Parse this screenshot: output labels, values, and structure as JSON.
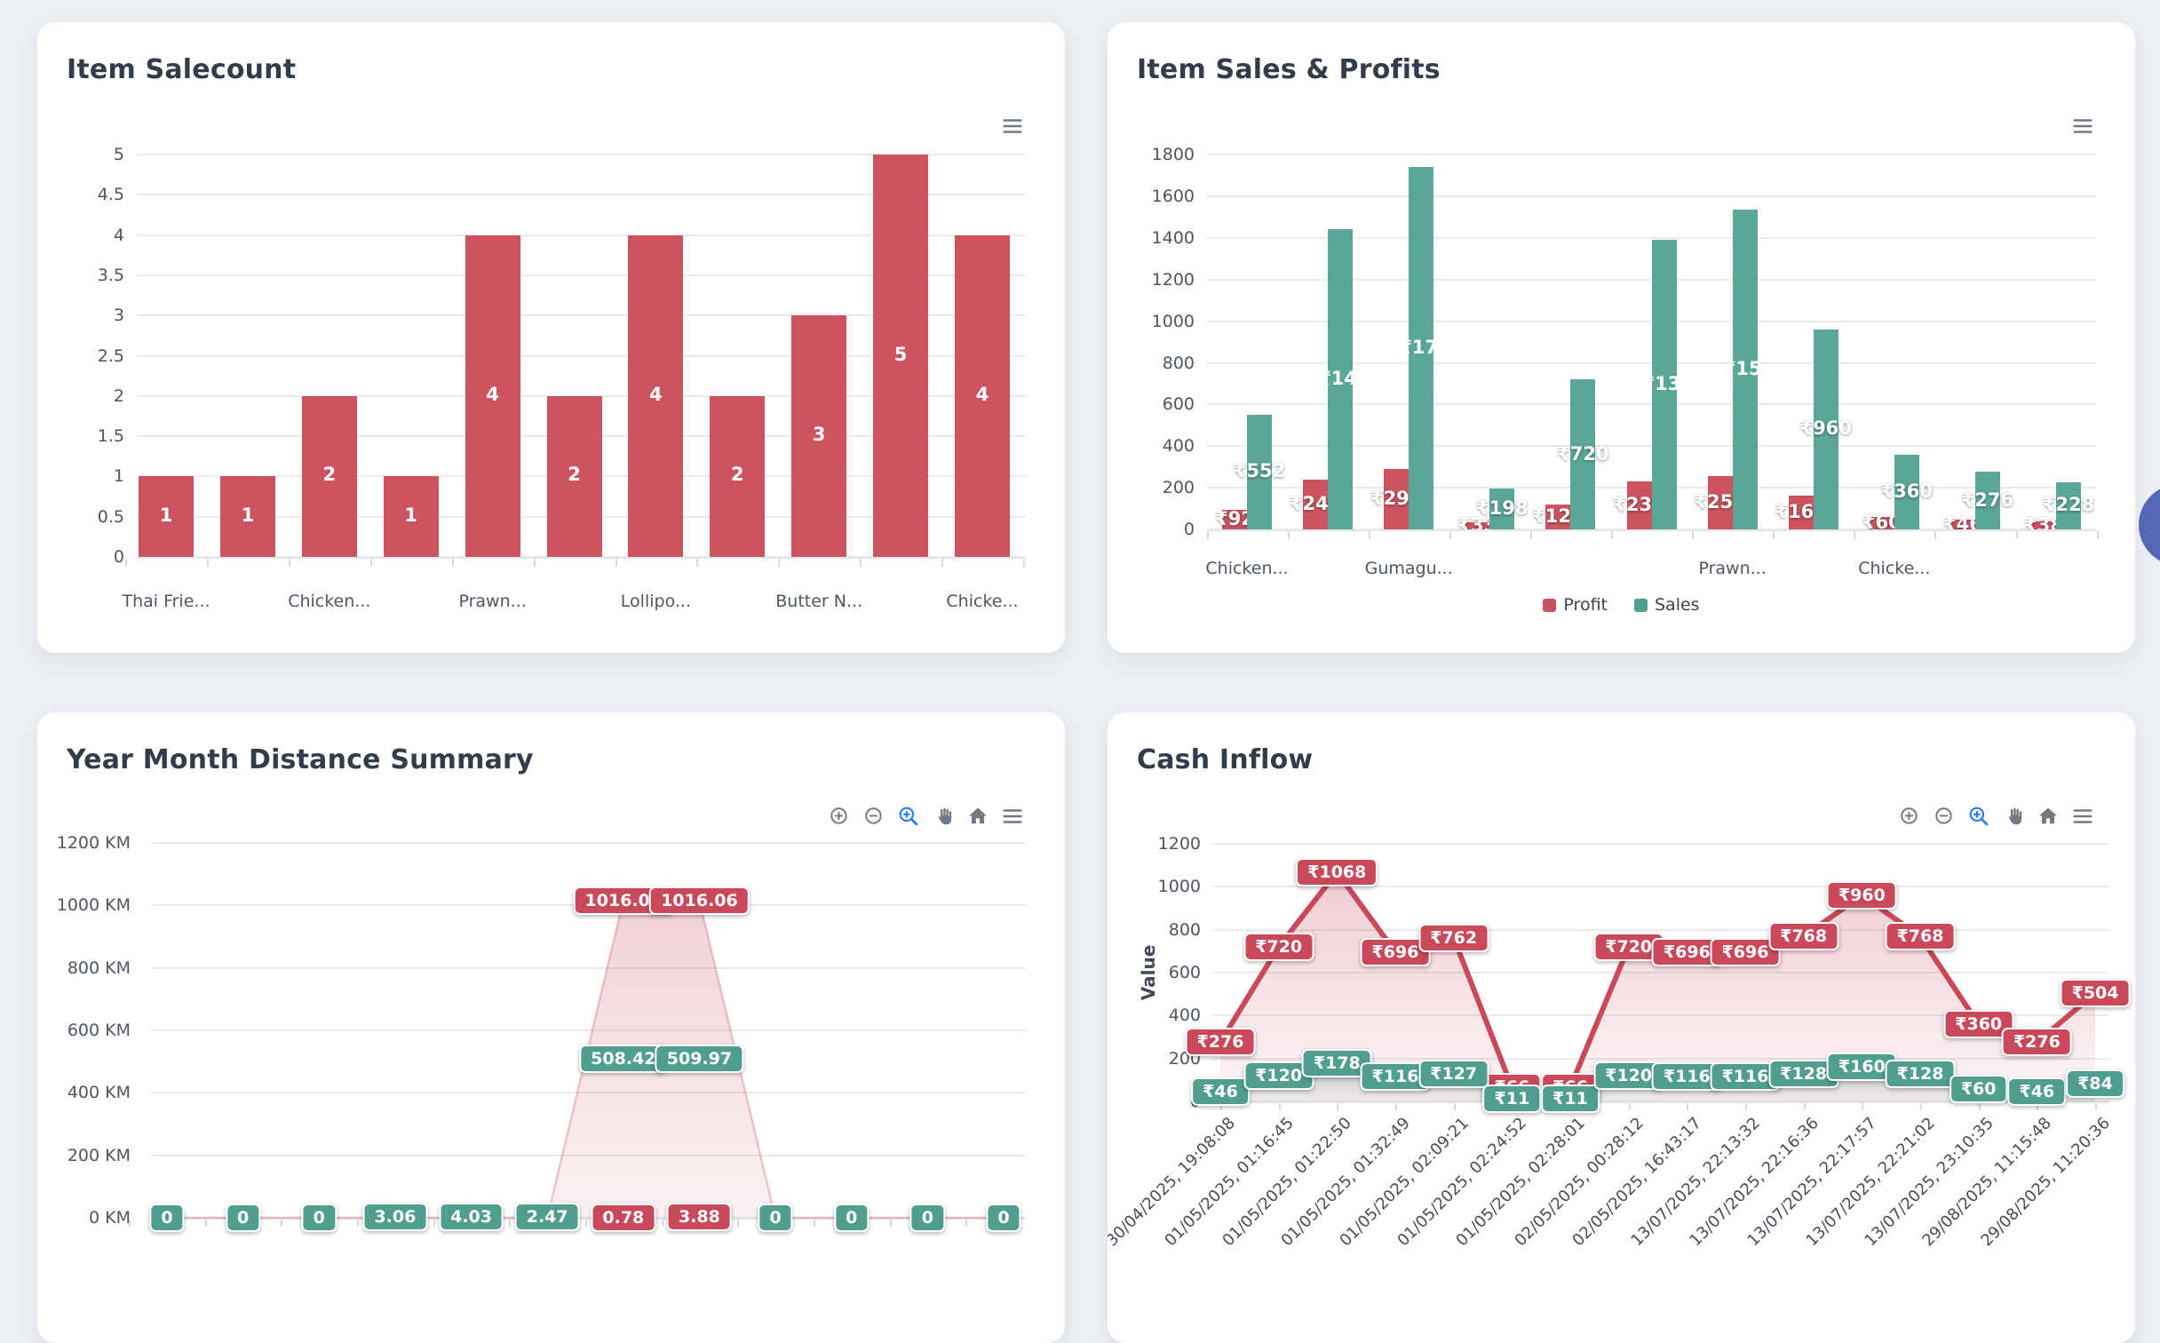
{
  "page": {
    "background_color": "#eceff4",
    "card_color": "#ffffff",
    "title_color": "#333c4a",
    "toolbar_icon_color": "#6e7a86",
    "selection_zoom_active_color": "#2b7cf0",
    "fab_color": "#5367b5",
    "label_colors": {
      "red": "#c9495a",
      "green": "#4f9e90"
    }
  },
  "chart_data": [
    {
      "id": "item-salecount",
      "type": "bar",
      "title": "Item Salecount",
      "categories": [
        "Thai Frie...",
        "",
        "Chicken...",
        "",
        "Prawn...",
        "",
        "Lollipo...",
        "",
        "Butter N...",
        "",
        "Chicke..."
      ],
      "values": [
        1,
        1,
        2,
        1,
        4,
        2,
        4,
        2,
        3,
        5,
        4
      ],
      "bar_color": "#cb5460",
      "ylim": [
        0,
        5
      ],
      "y_ticks": [
        "5",
        "4.5",
        "4",
        "3.5",
        "3",
        "2.5",
        "2",
        "1.5",
        "1",
        "0.5",
        "0"
      ],
      "grid": true,
      "legend_position": "none",
      "toolbar": "menu"
    },
    {
      "id": "item-sales-profits",
      "type": "grouped-bar",
      "title": "Item Sales & Profits",
      "categories": [
        "Chicken...",
        "",
        "Gumagu...",
        "",
        "",
        "",
        "Prawn...",
        "",
        "Chicke...",
        "",
        ""
      ],
      "series": [
        {
          "name": "Profit",
          "color": "#cb5460",
          "values": [
            92,
            240,
            290,
            33,
            120,
            232,
            256,
            160,
            60,
            46,
            38
          ],
          "labels": [
            "₹92",
            "₹240",
            "₹290",
            "₹33",
            "₹120",
            "₹232",
            "₹256",
            "₹160",
            "₹60",
            "₹46",
            "₹38"
          ]
        },
        {
          "name": "Sales",
          "color": "#5aa79a",
          "values": [
            552,
            1440,
            1740,
            198,
            720,
            1392,
            1536,
            960,
            360,
            276,
            228
          ],
          "labels": [
            "₹552",
            "₹1440",
            "₹1740",
            "₹198",
            "₹720",
            "₹1392",
            "₹1536",
            "₹960",
            "₹360",
            "₹276",
            "₹228"
          ]
        }
      ],
      "ylim": [
        0,
        1800
      ],
      "y_ticks": [
        "1800",
        "1600",
        "1400",
        "1200",
        "1000",
        "800",
        "600",
        "400",
        "200",
        "0"
      ],
      "grid": true,
      "legend_position": "bottom",
      "legend": [
        "Profit",
        "Sales"
      ],
      "toolbar": "menu"
    },
    {
      "id": "year-month-distance-summary",
      "type": "area",
      "title": "Year Month Distance Summary",
      "points": 12,
      "area_values": [
        0,
        0,
        0,
        0,
        0,
        0,
        1016.06,
        1016.06,
        0,
        0,
        0,
        0
      ],
      "area_color": "#c9505e",
      "ylim": [
        0,
        1200
      ],
      "y_ticks": [
        "1200 KM",
        "1000 KM",
        "800 KM",
        "600 KM",
        "400 KM",
        "200 KM",
        "0 KM"
      ],
      "point_labels": [
        {
          "point": 6,
          "text": "1016.06",
          "value": 1016.06,
          "color": "red"
        },
        {
          "point": 7,
          "text": "1016.06",
          "value": 1016.06,
          "color": "red"
        },
        {
          "point": 6,
          "text": "508.42",
          "value": 508.42,
          "color": "green"
        },
        {
          "point": 7,
          "text": "509.97",
          "value": 509.97,
          "color": "green"
        },
        {
          "point": 0,
          "text": "0",
          "value": 0,
          "color": "green"
        },
        {
          "point": 1,
          "text": "0",
          "value": 0,
          "color": "green"
        },
        {
          "point": 2,
          "text": "0",
          "value": 0,
          "color": "green"
        },
        {
          "point": 3,
          "text": "3.06",
          "value": 3.06,
          "color": "green"
        },
        {
          "point": 4,
          "text": "4.03",
          "value": 4.03,
          "color": "green"
        },
        {
          "point": 5,
          "text": "2.47",
          "value": 2.47,
          "color": "green"
        },
        {
          "point": 6,
          "text": "0.78",
          "value": 0.78,
          "color": "red"
        },
        {
          "point": 7,
          "text": "3.88",
          "value": 3.88,
          "color": "red"
        },
        {
          "point": 8,
          "text": "0",
          "value": 0,
          "color": "green"
        },
        {
          "point": 9,
          "text": "0",
          "value": 0,
          "color": "green"
        },
        {
          "point": 10,
          "text": "0",
          "value": 0,
          "color": "green"
        },
        {
          "point": 11,
          "text": "0",
          "value": 0,
          "color": "green"
        }
      ],
      "grid": true,
      "toolbar": "zoom"
    },
    {
      "id": "cash-inflow",
      "type": "line",
      "title": "Cash Inflow",
      "ylabel": "Value",
      "ylim": [
        0,
        1200
      ],
      "y_ticks": [
        "1200",
        "1000",
        "800",
        "600",
        "400",
        "200",
        "0"
      ],
      "x": [
        "30/04/2025, 19:08:08",
        "01/05/2025, 01:16:45",
        "01/05/2025, 01:22:50",
        "01/05/2025, 01:32:49",
        "01/05/2025, 02:09:21",
        "01/05/2025, 02:24:52",
        "01/05/2025, 02:28:01",
        "02/05/2025, 00:28:12",
        "02/05/2025, 16:43:17",
        "13/07/2025, 22:13:32",
        "13/07/2025, 22:16:36",
        "13/07/2025, 22:17:57",
        "13/07/2025, 22:21:02",
        "13/07/2025, 23:10:35",
        "29/08/2025, 11:15:48",
        "29/08/2025, 11:20:36"
      ],
      "series": [
        {
          "name": "red",
          "color": "#c9495a",
          "values": [
            276,
            720,
            1068,
            696,
            762,
            66,
            66,
            720,
            696,
            696,
            768,
            960,
            768,
            360,
            276,
            504
          ],
          "labels": [
            "₹276",
            "₹720",
            "₹1068",
            "₹696",
            "₹762",
            "₹66",
            "₹66",
            "₹720",
            "₹696",
            "₹696",
            "₹768",
            "₹960",
            "₹768",
            "₹360",
            "₹276",
            "₹504"
          ]
        },
        {
          "name": "green",
          "color": "#4f9e90",
          "values": [
            46,
            120,
            178,
            116,
            127,
            11,
            11,
            120,
            116,
            116,
            128,
            160,
            128,
            60,
            46,
            84
          ],
          "labels": [
            "₹46",
            "₹120",
            "₹178",
            "₹116",
            "₹127",
            "₹11",
            "₹11",
            "₹120",
            "₹116",
            "₹116",
            "₹128",
            "₹160",
            "₹128",
            "₹60",
            "₹46",
            "₹84"
          ]
        }
      ],
      "grid": true,
      "toolbar": "zoom",
      "legend_position": "none"
    }
  ]
}
